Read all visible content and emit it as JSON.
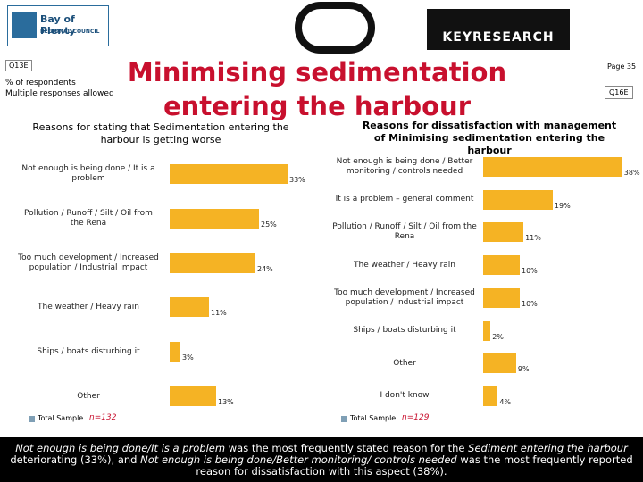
{
  "header": {
    "logo_left": "Bay of Plenty",
    "logo_left_sub": "REGIONAL COUNCIL",
    "logo_right": "KEYRESEARCH",
    "q_left": "Q13E",
    "note1": "% of respondents",
    "note2": "Multiple responses allowed",
    "page": "Page 35",
    "q_right": "Q16E",
    "title": "Minimising sedimentation entering the harbour"
  },
  "chart_data": [
    {
      "type": "bar",
      "orientation": "horizontal",
      "title": "Reasons for stating that Sedimentation entering the harbour is getting worse",
      "categories": [
        "Not enough is being done / It is a problem",
        "Pollution / Runoff / Silt / Oil from the Rena",
        "Too much development / Increased population / Industrial impact",
        "The weather / Heavy rain",
        "Ships / boats disturbing it",
        "Other"
      ],
      "series": [
        {
          "name": "Total Sample",
          "color": "#f5b324",
          "values": [
            33,
            25,
            24,
            11,
            3,
            13
          ],
          "value_labels": [
            "33%",
            "25%",
            "24%",
            "11%",
            "3%",
            "13%"
          ]
        }
      ],
      "legend_color": "#7f9fb5",
      "sample": "n=132"
    },
    {
      "type": "bar",
      "orientation": "horizontal",
      "title": "Reasons for dissatisfaction with management of Minimising sedimentation entering the harbour",
      "categories": [
        "Not enough is being done / Better monitoring / controls needed",
        "It is a problem – general comment",
        "Pollution / Runoff / Silt / Oil from the Rena",
        "The weather / Heavy rain",
        "Too much development / Increased population / Industrial impact",
        "Ships / boats disturbing it",
        "Other",
        "I don't know"
      ],
      "series": [
        {
          "name": "Total Sample",
          "color": "#f5b324",
          "values": [
            38,
            19,
            11,
            10,
            10,
            2,
            9,
            4
          ],
          "value_labels": [
            "38%",
            "19%",
            "11%",
            "10%",
            "10%",
            "2%",
            "9%",
            "4%"
          ]
        }
      ],
      "legend_color": "#7f9fb5",
      "sample": "n=129"
    }
  ],
  "footer": [
    "Not enough is being done/It is a problem",
    " was the most frequently stated reason for the ",
    "Sediment entering the harbour",
    " deteriorating (33%), and ",
    "Not enough is being done/Better monitoring/ controls needed",
    " was the most frequently reported reason for dissatisfaction with this aspect (38%)."
  ]
}
